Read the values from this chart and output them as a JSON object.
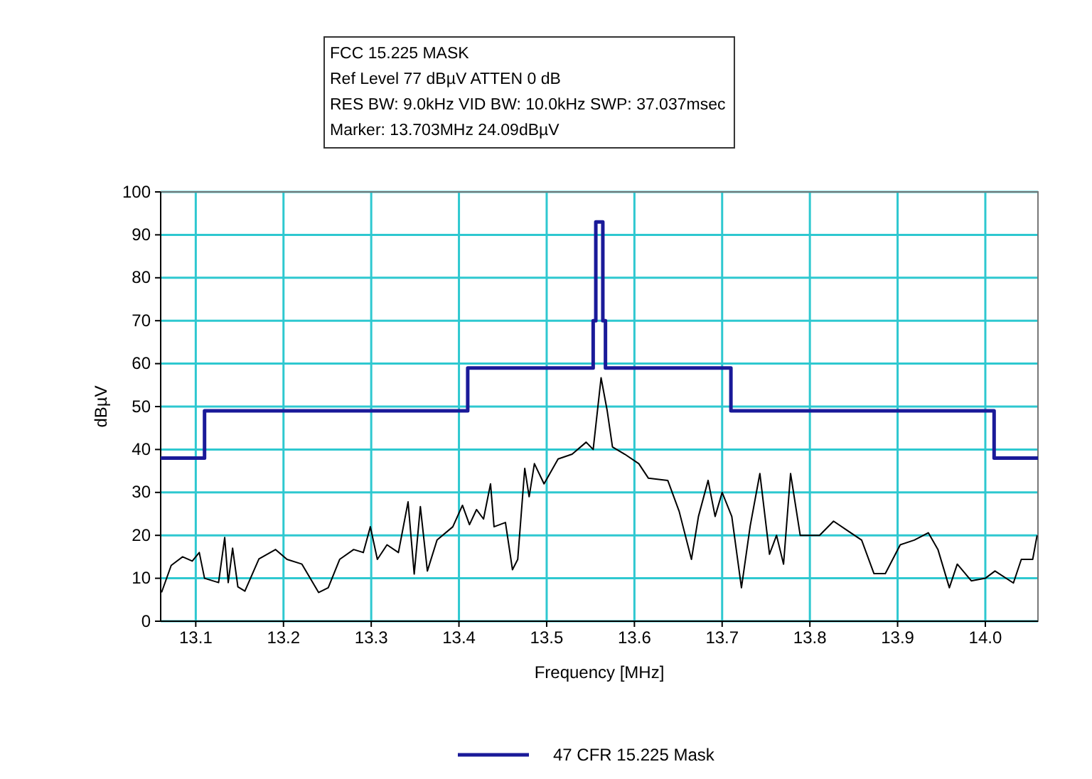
{
  "chart_data": {
    "type": "line",
    "title": "FCC 15.225 MASK",
    "annotations": [
      "Ref Level 77 dBµV    ATTEN 0 dB",
      "RES BW: 9.0kHz  VID BW: 10.0kHz  SWP: 37.037msec",
      "Marker: 13.703MHz  24.09dBµV"
    ],
    "xlabel": "Frequency [MHz]",
    "ylabel": "dBµV",
    "xlim": [
      13.06,
      14.06
    ],
    "xticks": [
      13.1,
      13.2,
      13.3,
      13.4,
      13.5,
      13.6,
      13.7,
      13.8,
      13.9,
      {
        "value": 14.0,
        "label": "14.0"
      }
    ],
    "ylim": [
      0,
      100
    ],
    "yticks": [
      0,
      10,
      20,
      30,
      40,
      50,
      60,
      70,
      80,
      90,
      100
    ],
    "grid": true,
    "legend": "bottom",
    "marker": "none",
    "line_style": "solid",
    "series": [
      {
        "color": "#000000",
        "x": [
          13.061,
          13.072,
          13.085,
          13.096,
          13.104,
          13.11,
          13.126,
          13.133,
          13.137,
          13.142,
          13.148,
          13.156,
          13.172,
          13.191,
          13.204,
          13.221,
          13.24,
          13.251,
          13.264,
          13.28,
          13.291,
          13.299,
          13.307,
          13.318,
          13.331,
          13.342,
          13.349,
          13.356,
          13.364,
          13.375,
          13.393,
          13.404,
          13.412,
          13.42,
          13.428,
          13.436,
          13.44,
          13.453,
          13.461,
          13.467,
          13.475,
          13.48,
          13.486,
          13.497,
          13.513,
          13.529,
          13.545,
          13.553,
          13.562,
          13.569,
          13.575,
          13.589,
          13.605,
          13.616,
          13.638,
          13.651,
          13.665,
          13.673,
          13.684,
          13.692,
          13.7,
          13.711,
          13.722,
          13.732,
          13.743,
          13.754,
          13.762,
          13.77,
          13.778,
          13.789,
          13.811,
          13.827,
          13.843,
          13.859,
          13.873,
          13.886,
          13.903,
          13.919,
          13.935,
          13.946,
          13.959,
          13.968,
          13.984,
          14.0,
          14.011,
          14.032,
          14.041,
          14.054,
          14.059
        ],
        "values": [
          6.7,
          13,
          15,
          14,
          16,
          10,
          9,
          19.5,
          9,
          17,
          8,
          7,
          14.5,
          16.7,
          14.4,
          13.3,
          6.7,
          7.8,
          14.4,
          16.7,
          16,
          22,
          14.4,
          17.8,
          16,
          27.8,
          11,
          26.7,
          11.7,
          18.9,
          22,
          27,
          22.5,
          26,
          23.8,
          32,
          22,
          23,
          12,
          14.4,
          35.6,
          29,
          36.7,
          32,
          37.8,
          38.9,
          41.7,
          40,
          56.7,
          49,
          40.6,
          38.9,
          36.7,
          33.3,
          32.8,
          25.6,
          14.4,
          24.4,
          32.8,
          24.4,
          30,
          24.4,
          7.8,
          22.2,
          34.4,
          15.6,
          20,
          13.3,
          34.4,
          20,
          20,
          23.3,
          21.1,
          18.9,
          11.1,
          11.1,
          17.8,
          18.9,
          20.6,
          16.7,
          7.8,
          13.3,
          9.4,
          10,
          11.7,
          8.9,
          14.4,
          14.4,
          20
        ]
      },
      {
        "name": "47 CFR 15.225 Mask",
        "color": "#1a1a99",
        "x": [
          13.06,
          13.11,
          13.11,
          13.41,
          13.41,
          13.553,
          13.553,
          13.556,
          13.556,
          13.564,
          13.564,
          13.567,
          13.567,
          13.71,
          13.71,
          14.01,
          14.01,
          14.06
        ],
        "values": [
          38,
          38,
          49,
          49,
          59,
          59,
          70,
          70,
          93,
          93,
          70,
          70,
          59,
          59,
          49,
          49,
          38,
          38
        ]
      }
    ]
  }
}
